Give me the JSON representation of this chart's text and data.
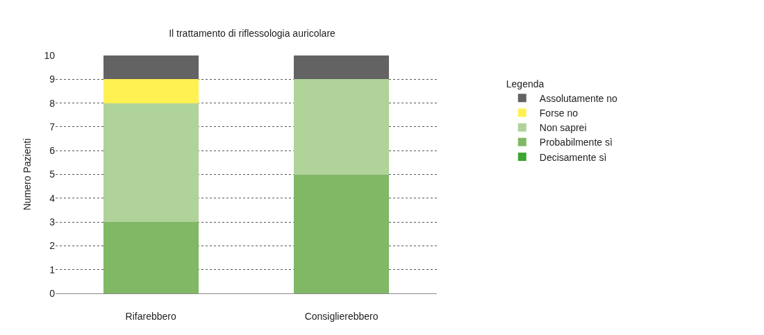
{
  "chart_data": {
    "type": "bar",
    "stacked": true,
    "title": "Il trattamento di riflessologia auricolare",
    "ylabel": "Numero Pazienti",
    "legend_title": "Legenda",
    "categories": [
      "Rifarebbero",
      "Consiglierebbero"
    ],
    "series": [
      {
        "name": "Decisamente sì",
        "color": "#3fa535",
        "values": [
          0,
          0
        ]
      },
      {
        "name": "Probabilmente sì",
        "color": "#80b865",
        "values": [
          3,
          5
        ]
      },
      {
        "name": "Non saprei",
        "color": "#b0d39a",
        "values": [
          5,
          4
        ]
      },
      {
        "name": "Forse no",
        "color": "#fff152",
        "values": [
          1,
          0
        ]
      },
      {
        "name": "Assolutamente no",
        "color": "#636363",
        "values": [
          1,
          1
        ]
      }
    ],
    "ylim": [
      0,
      10
    ],
    "yticks": [
      0,
      1,
      2,
      3,
      4,
      5,
      6,
      7,
      8,
      9,
      10
    ],
    "grid": "y",
    "legend": "right"
  }
}
